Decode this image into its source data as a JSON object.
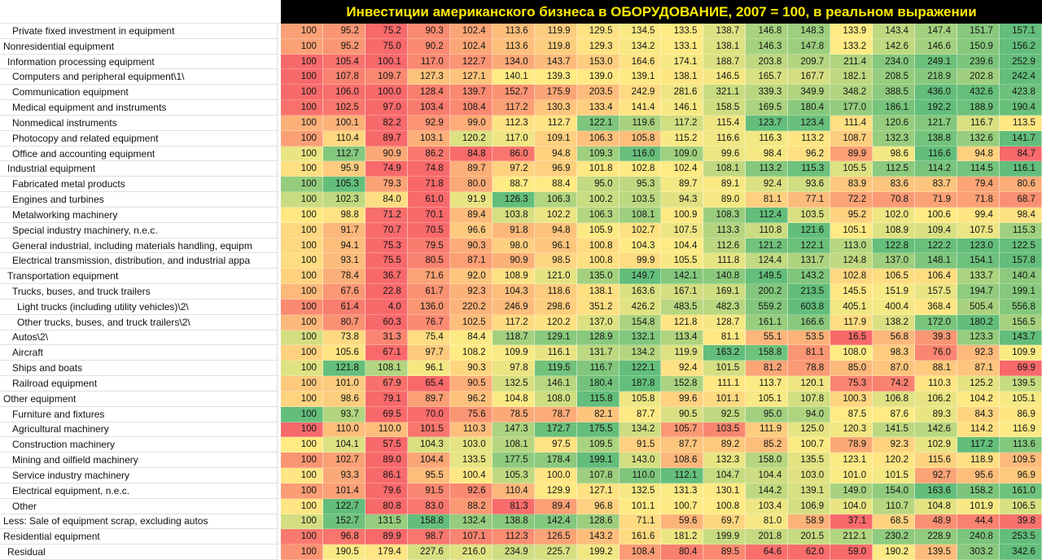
{
  "title": "Инвестиции американского бизнеса в ОБОРУДОВАНИЕ, 2007 = 100, в реальном выражении",
  "colors": {
    "title_bg": "#000000",
    "title_text": "#ffeb00",
    "scale_min": "#f8696b",
    "scale_mid": "#ffeb84",
    "scale_max": "#63be7b"
  },
  "chart_data": {
    "type": "heatmap",
    "title": "Инвестиции американского бизнеса в ОБОРУДОВАНИЕ, 2007 = 100, в реальном выражении",
    "base_value": "100",
    "num_columns": 18,
    "colorscale": {
      "min_color": "#f8696b",
      "mid_color": "#ffeb84",
      "max_color": "#63be7b",
      "mode": "per-row 3-color scale, midpoint at row median"
    },
    "rows": [
      {
        "label": "Private fixed investment in equipment",
        "indent": 2,
        "values": [
          "100",
          "95.2",
          "75.2",
          "90.3",
          "102.4",
          "113.6",
          "119.9",
          "129.5",
          "134.5",
          "133.5",
          "138.7",
          "146.8",
          "148.3",
          "133.9",
          "143.4",
          "147.4",
          "151.7",
          "157.1"
        ]
      },
      {
        "label": "Nonresidential equipment",
        "indent": 0,
        "values": [
          "100",
          "95.2",
          "75.0",
          "90.2",
          "102.4",
          "113.6",
          "119.8",
          "129.3",
          "134.2",
          "133.1",
          "138.1",
          "146.3",
          "147.8",
          "133.2",
          "142.6",
          "146.6",
          "150.9",
          "156.2"
        ]
      },
      {
        "label": "Information processing equipment",
        "indent": 1,
        "values": [
          "100",
          "105.4",
          "100.1",
          "117.0",
          "122.7",
          "134.0",
          "143.7",
          "153.0",
          "164.6",
          "174.1",
          "188.7",
          "203.8",
          "209.7",
          "211.4",
          "234.0",
          "249.1",
          "239.6",
          "252.9"
        ]
      },
      {
        "label": "Computers and peripheral equipment\\1\\",
        "indent": 2,
        "values": [
          "100",
          "107.8",
          "109.7",
          "127.3",
          "127.1",
          "140.1",
          "139.3",
          "139.0",
          "139.1",
          "138.1",
          "146.5",
          "165.7",
          "167.7",
          "182.1",
          "208.5",
          "218.9",
          "202.8",
          "242.4"
        ]
      },
      {
        "label": "Communication equipment",
        "indent": 2,
        "values": [
          "100",
          "106.0",
          "100.0",
          "128.4",
          "139.7",
          "152.7",
          "175.9",
          "203.5",
          "242.9",
          "281.6",
          "321.1",
          "339.3",
          "349.9",
          "348.2",
          "388.5",
          "436.0",
          "432.6",
          "423.8"
        ]
      },
      {
        "label": "Medical equipment and instruments",
        "indent": 2,
        "values": [
          "100",
          "102.5",
          "97.0",
          "103.4",
          "108.4",
          "117.2",
          "130.3",
          "133.4",
          "141.4",
          "146.1",
          "158.5",
          "169.5",
          "180.4",
          "177.0",
          "186.1",
          "192.2",
          "188.9",
          "190.4"
        ]
      },
      {
        "label": "Nonmedical instruments",
        "indent": 2,
        "values": [
          "100",
          "100.1",
          "82.2",
          "92.9",
          "99.0",
          "112.3",
          "112.7",
          "122.1",
          "119.6",
          "117.2",
          "115.4",
          "123.7",
          "123.4",
          "111.4",
          "120.6",
          "121.7",
          "116.7",
          "113.5"
        ]
      },
      {
        "label": "Photocopy and related equipment",
        "indent": 2,
        "values": [
          "100",
          "110.4",
          "89.7",
          "103.1",
          "120.2",
          "117.0",
          "109.1",
          "106.3",
          "105.8",
          "115.2",
          "116.6",
          "116.3",
          "113.2",
          "108.7",
          "132.3",
          "138.8",
          "132.6",
          "141.7"
        ]
      },
      {
        "label": "Office and accounting equipment",
        "indent": 2,
        "values": [
          "100",
          "112.7",
          "90.9",
          "86.2",
          "84.8",
          "86.0",
          "94.8",
          "109.3",
          "116.0",
          "109.0",
          "99.6",
          "98.4",
          "96.2",
          "89.9",
          "98.6",
          "116.6",
          "94.8",
          "84.7"
        ]
      },
      {
        "label": "Industrial equipment",
        "indent": 1,
        "values": [
          "100",
          "95.9",
          "74.9",
          "74.8",
          "89.7",
          "97.2",
          "96.9",
          "101.8",
          "102.8",
          "102.4",
          "108.1",
          "113.2",
          "115.3",
          "105.5",
          "112.5",
          "114.2",
          "114.5",
          "116.1"
        ]
      },
      {
        "label": "Fabricated metal products",
        "indent": 2,
        "values": [
          "100",
          "105.3",
          "79.3",
          "71.8",
          "80.0",
          "88.7",
          "88.4",
          "95.0",
          "95.3",
          "89.7",
          "89.1",
          "92.4",
          "93.6",
          "83.9",
          "83.6",
          "83.7",
          "79.4",
          "80.6"
        ]
      },
      {
        "label": "Engines and turbines",
        "indent": 2,
        "values": [
          "100",
          "102.3",
          "84.0",
          "61.0",
          "91.9",
          "126.3",
          "106.3",
          "100.2",
          "103.5",
          "94.3",
          "89.0",
          "81.1",
          "77.1",
          "72.2",
          "70.8",
          "71.9",
          "71.8",
          "68.7"
        ]
      },
      {
        "label": "Metalworking machinery",
        "indent": 2,
        "values": [
          "100",
          "98.8",
          "71.2",
          "70.1",
          "89.4",
          "103.8",
          "102.2",
          "106.3",
          "108.1",
          "100.9",
          "108.3",
          "112.4",
          "103.5",
          "95.2",
          "102.0",
          "100.6",
          "99.4",
          "98.4"
        ]
      },
      {
        "label": "Special industry machinery, n.e.c.",
        "indent": 2,
        "values": [
          "100",
          "91.7",
          "70.7",
          "70.5",
          "96.6",
          "91.8",
          "94.8",
          "105.9",
          "102.7",
          "107.5",
          "113.3",
          "110.8",
          "121.6",
          "105.1",
          "108.9",
          "109.4",
          "107.5",
          "115.3"
        ]
      },
      {
        "label": "General industrial, including materials handling, equipm",
        "indent": 2,
        "values": [
          "100",
          "94.1",
          "75.3",
          "79.5",
          "90.3",
          "98.0",
          "96.1",
          "100.8",
          "104.3",
          "104.4",
          "112.6",
          "121.2",
          "122.1",
          "113.0",
          "122.8",
          "122.2",
          "123.0",
          "122.5"
        ]
      },
      {
        "label": "Electrical transmission, distribution, and industrial appa",
        "indent": 2,
        "values": [
          "100",
          "93.1",
          "75.5",
          "80.5",
          "87.1",
          "90.9",
          "98.5",
          "100.8",
          "99.9",
          "105.5",
          "111.8",
          "124.4",
          "131.7",
          "124.8",
          "137.0",
          "148.1",
          "154.1",
          "157.8"
        ]
      },
      {
        "label": "Transportation equipment",
        "indent": 1,
        "values": [
          "100",
          "78.4",
          "36.7",
          "71.6",
          "92.0",
          "108.9",
          "121.0",
          "135.0",
          "149.7",
          "142.1",
          "140.8",
          "149.5",
          "143.2",
          "102.8",
          "106.5",
          "106.4",
          "133.7",
          "140.4"
        ]
      },
      {
        "label": "Trucks, buses, and truck trailers",
        "indent": 2,
        "values": [
          "100",
          "67.6",
          "22.8",
          "61.7",
          "92.3",
          "104.3",
          "118.6",
          "138.1",
          "163.6",
          "167.1",
          "169.1",
          "200.2",
          "213.5",
          "145.5",
          "151.9",
          "157.5",
          "194.7",
          "199.1"
        ]
      },
      {
        "label": "Light trucks (including utility vehicles)\\2\\",
        "indent": 3,
        "values": [
          "100",
          "61.4",
          "4.0",
          "136.0",
          "220.2",
          "246.9",
          "298.6",
          "351.2",
          "426.2",
          "483.5",
          "482.3",
          "559.2",
          "603.8",
          "405.1",
          "400.4",
          "368.4",
          "505.4",
          "556.8"
        ]
      },
      {
        "label": "Other trucks, buses, and truck trailers\\2\\",
        "indent": 3,
        "values": [
          "100",
          "80.7",
          "60.3",
          "76.7",
          "102.5",
          "117.2",
          "120.2",
          "137.0",
          "154.8",
          "121.8",
          "128.7",
          "161.1",
          "166.6",
          "117.9",
          "138.2",
          "172.0",
          "180.2",
          "156.5"
        ]
      },
      {
        "label": "Autos\\2\\",
        "indent": 2,
        "values": [
          "100",
          "73.8",
          "31.3",
          "75.4",
          "84.4",
          "118.7",
          "129.1",
          "128.9",
          "132.1",
          "113.4",
          "81.1",
          "55.1",
          "53.5",
          "16.5",
          "56.8",
          "39.3",
          "123.3",
          "143.7"
        ]
      },
      {
        "label": "Aircraft",
        "indent": 2,
        "values": [
          "100",
          "105.6",
          "67.1",
          "97.7",
          "108.2",
          "109.9",
          "116.1",
          "131.7",
          "134.2",
          "119.9",
          "163.2",
          "158.8",
          "81.1",
          "108.0",
          "98.3",
          "76.0",
          "92.3",
          "109.9"
        ]
      },
      {
        "label": "Ships and boats",
        "indent": 2,
        "values": [
          "100",
          "121.8",
          "108.1",
          "96.1",
          "90.3",
          "97.8",
          "119.5",
          "116.7",
          "122.1",
          "92.4",
          "101.5",
          "81.2",
          "78.8",
          "85.0",
          "87.0",
          "88.1",
          "87.1",
          "69.9"
        ]
      },
      {
        "label": "Railroad equipment",
        "indent": 2,
        "values": [
          "100",
          "101.0",
          "67.9",
          "65.4",
          "90.5",
          "132.5",
          "146.1",
          "180.4",
          "187.8",
          "152.8",
          "111.1",
          "113.7",
          "120.1",
          "75.3",
          "74.2",
          "110.3",
          "125.2",
          "139.5"
        ]
      },
      {
        "label": "Other equipment",
        "indent": 0,
        "values": [
          "100",
          "98.6",
          "79.1",
          "89.7",
          "96.2",
          "104.8",
          "108.0",
          "115.8",
          "105.8",
          "99.6",
          "101.1",
          "105.1",
          "107.8",
          "100.3",
          "106.8",
          "106.2",
          "104.2",
          "105.1"
        ]
      },
      {
        "label": "Furniture and fixtures",
        "indent": 2,
        "values": [
          "100",
          "93.7",
          "69.5",
          "70.0",
          "75.6",
          "78.5",
          "78.7",
          "82.1",
          "87.7",
          "90.5",
          "92.5",
          "95.0",
          "94.0",
          "87.5",
          "87.6",
          "89.3",
          "84.3",
          "86.9"
        ]
      },
      {
        "label": "Agricultural machinery",
        "indent": 2,
        "values": [
          "100",
          "110.0",
          "110.0",
          "101.5",
          "110.3",
          "147.3",
          "172.7",
          "175.5",
          "134.2",
          "105.7",
          "103.5",
          "111.9",
          "125.0",
          "120.3",
          "141.5",
          "142.6",
          "114.2",
          "116.9"
        ]
      },
      {
        "label": "Construction machinery",
        "indent": 2,
        "values": [
          "100",
          "104.1",
          "57.5",
          "104.3",
          "103.0",
          "108.1",
          "97.5",
          "109.5",
          "91.5",
          "87.7",
          "89.2",
          "85.2",
          "100.7",
          "78.9",
          "92.3",
          "102.9",
          "117.2",
          "113.6"
        ]
      },
      {
        "label": "Mining and oilfield machinery",
        "indent": 2,
        "values": [
          "100",
          "102.7",
          "89.0",
          "104.4",
          "133.5",
          "177.5",
          "178.4",
          "199.1",
          "143.0",
          "108.6",
          "132.3",
          "158.0",
          "135.5",
          "123.1",
          "120.2",
          "115.6",
          "118.9",
          "109.5"
        ]
      },
      {
        "label": "Service industry machinery",
        "indent": 2,
        "values": [
          "100",
          "93.3",
          "86.1",
          "95.5",
          "100.4",
          "105.3",
          "100.0",
          "107.8",
          "110.0",
          "112.1",
          "104.7",
          "104.4",
          "103.0",
          "101.0",
          "101.5",
          "92.7",
          "95.6",
          "96.9"
        ]
      },
      {
        "label": "Electrical equipment, n.e.c.",
        "indent": 2,
        "values": [
          "100",
          "101.4",
          "79.6",
          "91.5",
          "92.6",
          "110.4",
          "129.9",
          "127.1",
          "132.5",
          "131.3",
          "130.1",
          "144.2",
          "139.1",
          "149.0",
          "154.0",
          "163.6",
          "158.2",
          "161.0"
        ]
      },
      {
        "label": "Other",
        "indent": 2,
        "values": [
          "100",
          "122.7",
          "80.8",
          "83.0",
          "88.2",
          "81.3",
          "89.4",
          "96.8",
          "101.1",
          "100.7",
          "100.8",
          "103.4",
          "106.9",
          "104.0",
          "110.7",
          "104.8",
          "101.9",
          "106.5"
        ]
      },
      {
        "label": "Less: Sale of equipment scrap, excluding autos",
        "indent": 0,
        "values": [
          "100",
          "152.7",
          "131.5",
          "158.8",
          "132.4",
          "138.8",
          "142.4",
          "128.6",
          "71.1",
          "59.6",
          "69.7",
          "81.0",
          "58.9",
          "37.1",
          "68.5",
          "48.9",
          "44.4",
          "39.8"
        ]
      },
      {
        "label": "Residential equipment",
        "indent": 0,
        "values": [
          "100",
          "96.8",
          "89.9",
          "98.7",
          "107.1",
          "112.3",
          "126.5",
          "143.2",
          "161.6",
          "181.2",
          "199.9",
          "201.8",
          "201.5",
          "212.1",
          "230.2",
          "228.9",
          "240.8",
          "253.5"
        ]
      },
      {
        "label": "Residual",
        "indent": 1,
        "values": [
          "100",
          "190.5",
          "179.4",
          "227.6",
          "216.0",
          "234.9",
          "225.7",
          "199.2",
          "108.4",
          "80.4",
          "89.5",
          "64.6",
          "62.0",
          "59.0",
          "190.2",
          "139.5",
          "303.2",
          "342.6"
        ]
      }
    ]
  }
}
